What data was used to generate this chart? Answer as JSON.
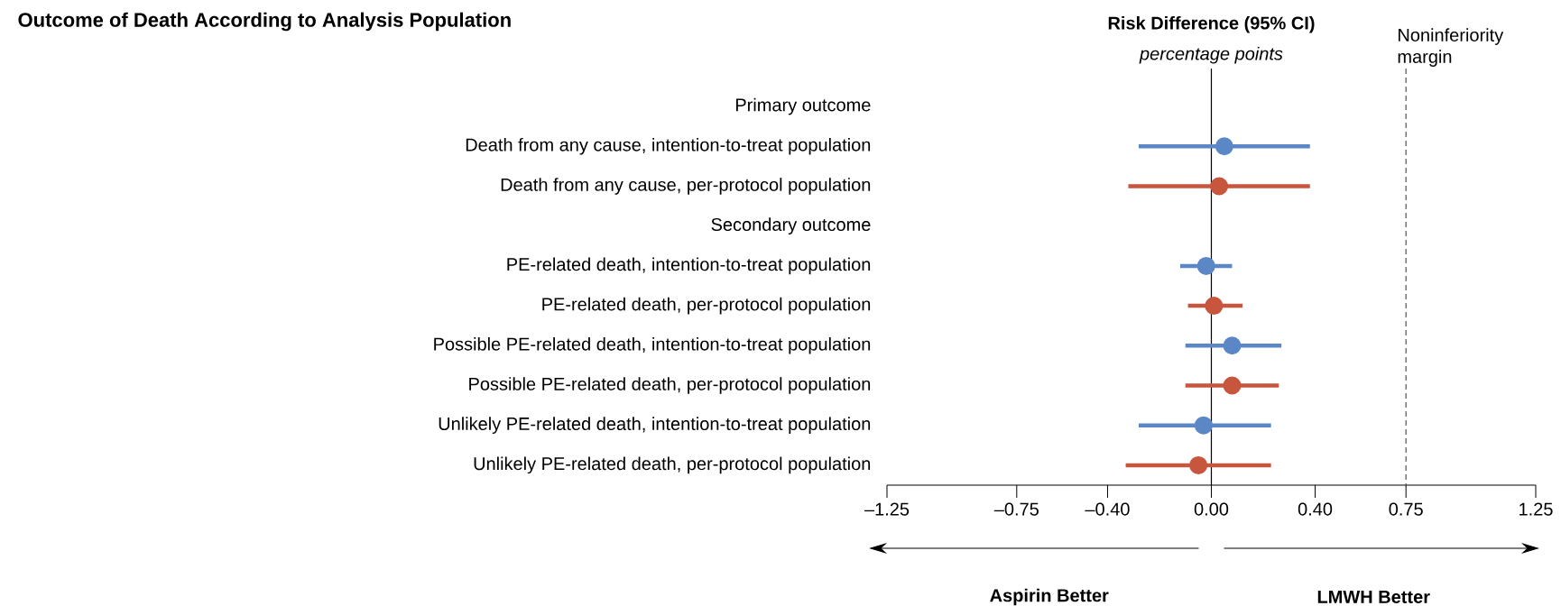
{
  "chart_data": {
    "type": "scatter",
    "orientation": "horizontal",
    "marker": "circle",
    "title": "Outcome of Death According to Analysis Population",
    "xlabel": "Risk Difference (95% CI)",
    "annotations": [
      "*percentage points*",
      "Aspirin Better",
      "LMWH Better"
    ],
    "categories": [
      "Primary outcome",
      "Death from any cause, intention-to-treat population",
      "Death from any cause, per-protocol population",
      "Secondary outcome",
      "PE-related death, intention-to-treat population",
      "PE-related death, per-protocol population",
      "Possible PE-related death, intention-to-treat population",
      "Possible PE-related death, per-protocol population",
      "Unlikely PE-related death, intention-to-treat population",
      "Unlikely PE-related death, per-protocol population"
    ],
    "xlim": [
      -1.25,
      1.25
    ],
    "xticks": [
      {
        "value": -1.25,
        "label": "–1.25"
      },
      {
        "value": -0.75,
        "label": "–0.75"
      },
      {
        "value": -0.4,
        "label": "–0.40"
      },
      {
        "value": 0,
        "label": "0.00"
      },
      {
        "value": 0.4,
        "label": "0.40"
      },
      0.75,
      1.25
    ],
    "series": [
      {
        "color": "#5b87c7",
        "values": [
          null,
          0.05,
          null,
          null,
          -0.02,
          null,
          0.08,
          null,
          -0.03,
          null
        ],
        "errors": [
          null,
          [
            -0.28,
            0.38
          ],
          null,
          null,
          [
            -0.12,
            0.08
          ],
          null,
          [
            -0.1,
            0.27
          ],
          null,
          [
            -0.28,
            0.23
          ],
          null
        ]
      },
      {
        "color": "#c8553d",
        "values": [
          null,
          null,
          0.03,
          null,
          null,
          0.01,
          null,
          0.08,
          null,
          -0.05
        ],
        "errors": [
          null,
          null,
          [
            -0.32,
            0.38
          ],
          null,
          null,
          [
            -0.09,
            0.12
          ],
          null,
          [
            -0.1,
            0.26
          ],
          null,
          [
            -0.33,
            0.23
          ]
        ]
      }
    ],
    "ref_lines": [
      {
        "axis": "x",
        "value": 0,
        "color": "#000000",
        "line_style": "solid"
      },
      {
        "axis": "x",
        "value": 0.75,
        "label": "Noninferiority margin",
        "color": "#555555",
        "line_style": "dashed"
      }
    ]
  }
}
